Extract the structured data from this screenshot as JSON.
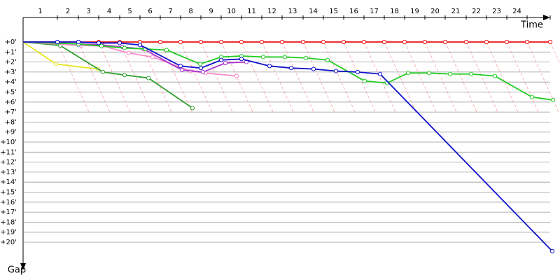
{
  "chart_data": {
    "type": "line",
    "x_title": "Time",
    "y_title": "Gap",
    "laps": [
      "1",
      "2",
      "3",
      "4",
      "5",
      "6",
      "7",
      "8",
      "9",
      "10",
      "11",
      "12",
      "13",
      "14",
      "15",
      "16",
      "17",
      "18",
      "19",
      "20",
      "21",
      "22",
      "23",
      "24"
    ],
    "xlim": [
      0,
      753
    ],
    "ylim": [
      0,
      22
    ],
    "yticks": [
      {
        "value": 0,
        "label": "+0'"
      },
      {
        "value": 1,
        "label": "+1'"
      },
      {
        "value": 2,
        "label": "+2'"
      },
      {
        "value": 3,
        "label": "+3'"
      },
      {
        "value": 4,
        "label": "+4'"
      },
      {
        "value": 5,
        "label": "+5'"
      },
      {
        "value": 6,
        "label": "+6'"
      },
      {
        "value": 7,
        "label": "+7'"
      },
      {
        "value": 8,
        "label": "+8'"
      },
      {
        "value": 9,
        "label": "+9'"
      },
      {
        "value": 10,
        "label": "+10'"
      },
      {
        "value": 11,
        "label": "+11'"
      },
      {
        "value": 12,
        "label": "+12'"
      },
      {
        "value": 13,
        "label": "+13'"
      },
      {
        "value": 14,
        "label": "+14'"
      },
      {
        "value": 15,
        "label": "+15'"
      },
      {
        "value": 16,
        "label": "+16'"
      },
      {
        "value": 17,
        "label": "+17'"
      },
      {
        "value": 18,
        "label": "+18'"
      },
      {
        "value": 19,
        "label": "+19'"
      },
      {
        "value": 20,
        "label": "+20'"
      }
    ],
    "grid": true,
    "series": [
      {
        "color": "#ee1111",
        "x": [
          0,
          49,
          79,
          108,
          138,
          167,
          196,
          225,
          254,
          283,
          312,
          341,
          370,
          400,
          429,
          458,
          487,
          516,
          545,
          574,
          603,
          633,
          662,
          691,
          720,
          753
        ],
        "values": [
          0,
          0,
          0,
          0,
          0,
          0,
          0,
          0,
          0,
          0,
          0,
          0,
          0,
          0,
          0,
          0,
          0,
          0,
          0,
          0,
          0,
          0,
          0,
          0,
          0,
          0
        ]
      },
      {
        "color": "#e5e522",
        "x": [
          0,
          47,
          107
        ],
        "values": [
          0,
          2.2,
          2.7
        ]
      },
      {
        "color": "#33a033",
        "x": [
          0,
          53,
          114,
          145,
          179,
          242
        ],
        "values": [
          0,
          0.35,
          3.0,
          3.3,
          3.6,
          6.6
        ]
      },
      {
        "color": "#66aaee",
        "x": [
          0,
          79,
          110
        ],
        "values": [
          0,
          0.3,
          0.3
        ]
      },
      {
        "color": "#ff88cc",
        "x": [
          0,
          83,
          114,
          151,
          185,
          239,
          261,
          305
        ],
        "values": [
          0,
          0.35,
          0.4,
          1.1,
          1.5,
          2.9,
          3.1,
          3.4
        ]
      },
      {
        "color": "#aa33cc",
        "x": [
          0,
          82,
          112,
          142,
          172,
          227,
          257,
          289,
          319
        ],
        "values": [
          0,
          0.2,
          0.3,
          0.5,
          0.7,
          2.8,
          3.0,
          2.1,
          2.0
        ]
      },
      {
        "color": "#22cc22",
        "x": [
          0,
          49,
          79,
          112,
          145,
          175,
          205,
          253,
          283,
          312,
          343,
          374,
          404,
          435,
          488,
          520,
          550,
          580,
          610,
          640,
          674,
          727,
          757
        ],
        "values": [
          0,
          0.1,
          0.2,
          0.4,
          0.6,
          0.7,
          0.8,
          2.2,
          1.5,
          1.4,
          1.5,
          1.5,
          1.6,
          1.8,
          3.9,
          4.1,
          3.1,
          3.1,
          3.2,
          3.2,
          3.4,
          5.5,
          5.8
        ]
      },
      {
        "color": "#1111cc",
        "x": [
          0,
          49,
          79,
          108,
          138,
          167,
          225,
          254,
          283,
          312,
          352,
          383,
          415,
          447,
          478,
          510,
          756
        ],
        "values": [
          0,
          0,
          0,
          0.1,
          0.1,
          0.3,
          2.4,
          2.6,
          1.8,
          1.7,
          2.4,
          2.6,
          2.7,
          2.9,
          3.0,
          3.2,
          20.9
        ]
      }
    ]
  }
}
